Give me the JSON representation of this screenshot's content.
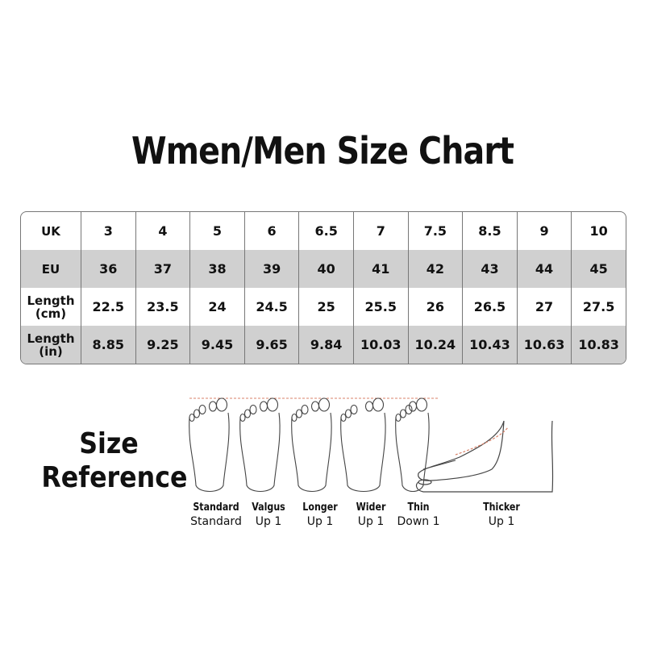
{
  "title": "Wmen/Men Size Chart",
  "table": {
    "rows": [
      {
        "label": "UK",
        "values": [
          "3",
          "4",
          "5",
          "6",
          "6.5",
          "7",
          "7.5",
          "8.5",
          "9",
          "10"
        ]
      },
      {
        "label": "EU",
        "values": [
          "36",
          "37",
          "38",
          "39",
          "40",
          "41",
          "42",
          "43",
          "44",
          "45"
        ]
      },
      {
        "label": "Length (cm)",
        "values": [
          "22.5",
          "23.5",
          "24",
          "24.5",
          "25",
          "25.5",
          "26",
          "26.5",
          "27",
          "27.5"
        ]
      },
      {
        "label": "Length (in)",
        "values": [
          "8.85",
          "9.25",
          "9.45",
          "9.65",
          "9.84",
          "10.03",
          "10.24",
          "10.43",
          "10.63",
          "10.83"
        ]
      }
    ]
  },
  "size_reference": {
    "title_line1": "Size",
    "title_line2": "Reference",
    "items": [
      {
        "type": "Standard",
        "advice": "Standard"
      },
      {
        "type": "Valgus",
        "advice": "Up 1"
      },
      {
        "type": "Longer",
        "advice": "Up 1"
      },
      {
        "type": "Wider",
        "advice": "Up 1"
      },
      {
        "type": "Thin",
        "advice": "Down 1"
      },
      {
        "type": "Thicker",
        "advice": "Up 1"
      }
    ]
  },
  "colors": {
    "shaded_row": "#d0d0d0",
    "guide_line": "#d9826a"
  }
}
